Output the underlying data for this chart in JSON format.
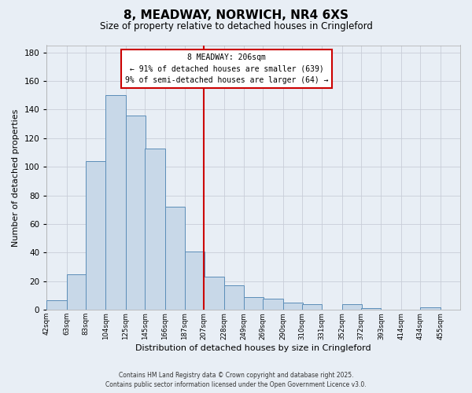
{
  "title": "8, MEADWAY, NORWICH, NR4 6XS",
  "subtitle": "Size of property relative to detached houses in Cringleford",
  "xlabel": "Distribution of detached houses by size in Cringleford",
  "ylabel": "Number of detached properties",
  "bin_labels": [
    "42sqm",
    "63sqm",
    "83sqm",
    "104sqm",
    "125sqm",
    "145sqm",
    "166sqm",
    "187sqm",
    "207sqm",
    "228sqm",
    "249sqm",
    "269sqm",
    "290sqm",
    "310sqm",
    "331sqm",
    "352sqm",
    "372sqm",
    "393sqm",
    "414sqm",
    "434sqm",
    "455sqm"
  ],
  "bin_edges": [
    42,
    63,
    83,
    104,
    125,
    145,
    166,
    187,
    207,
    228,
    249,
    269,
    290,
    310,
    331,
    352,
    372,
    393,
    414,
    434,
    455
  ],
  "bar_heights": [
    7,
    25,
    104,
    150,
    136,
    113,
    72,
    41,
    23,
    17,
    9,
    8,
    5,
    4,
    0,
    4,
    1,
    0,
    0,
    2
  ],
  "bar_color": "#c8d8e8",
  "bar_edgecolor": "#5b8db8",
  "vline_x": 207,
  "vline_color": "#cc0000",
  "ylim": [
    0,
    185
  ],
  "yticks": [
    0,
    20,
    40,
    60,
    80,
    100,
    120,
    140,
    160,
    180
  ],
  "annotation_title": "8 MEADWAY: 206sqm",
  "annotation_line1": "← 91% of detached houses are smaller (639)",
  "annotation_line2": "9% of semi-detached houses are larger (64) →",
  "annotation_box_color": "#ffffff",
  "annotation_box_edgecolor": "#cc0000",
  "grid_color": "#c8cdd8",
  "bg_color": "#e8eef5",
  "title_fontsize": 11,
  "subtitle_fontsize": 8.5,
  "ylabel_fontsize": 8,
  "xlabel_fontsize": 8,
  "footnote1": "Contains HM Land Registry data © Crown copyright and database right 2025.",
  "footnote2": "Contains public sector information licensed under the Open Government Licence v3.0."
}
